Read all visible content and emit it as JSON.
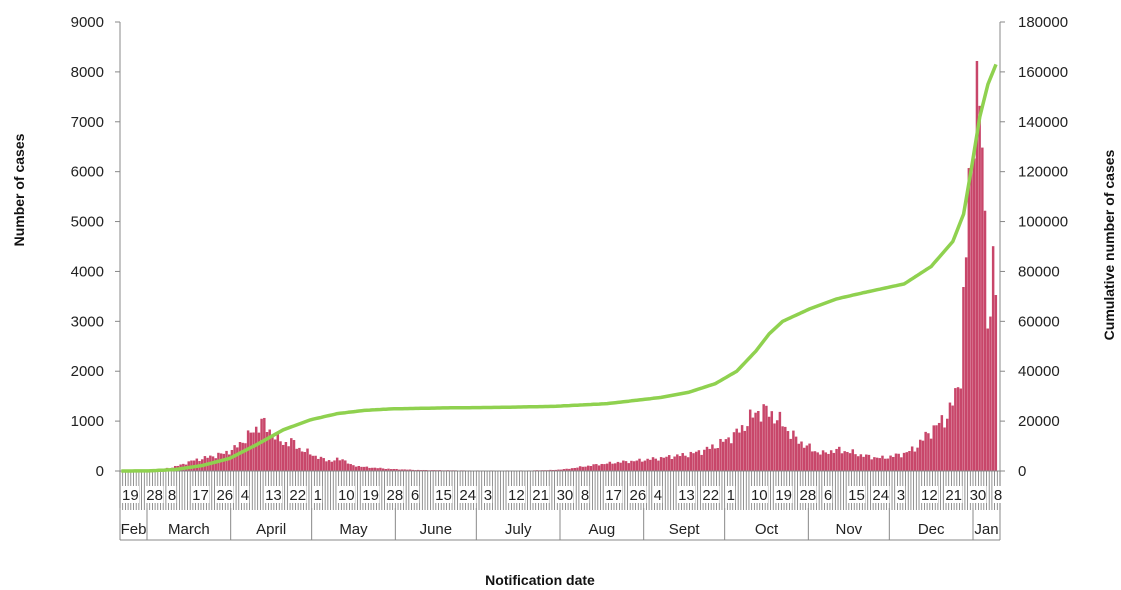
{
  "chart_data": {
    "type": "bar",
    "xlabel": "Notification date",
    "ylabel": "Number of cases",
    "y2label": "Cumulative number of cases",
    "ylim": [
      0,
      9000
    ],
    "y2lim": [
      0,
      180000
    ],
    "yticks": [
      "0",
      "1000",
      "2000",
      "3000",
      "4000",
      "5000",
      "6000",
      "7000",
      "8000",
      "9000"
    ],
    "y2ticks": [
      "0",
      "20000",
      "40000",
      "60000",
      "80000",
      "100000",
      "120000",
      "140000",
      "160000",
      "180000"
    ],
    "grid": false,
    "legend": "none",
    "colors": {
      "bars": "#c8466a",
      "line": "#8fd14f",
      "axis": "#888888"
    },
    "month_labels": [
      {
        "label": "Feb",
        "start_day": 0,
        "end_day": 10
      },
      {
        "label": "March",
        "start_day": 10,
        "end_day": 41
      },
      {
        "label": "April",
        "start_day": 41,
        "end_day": 71
      },
      {
        "label": "May",
        "start_day": 71,
        "end_day": 102
      },
      {
        "label": "June",
        "start_day": 102,
        "end_day": 132
      },
      {
        "label": "July",
        "start_day": 132,
        "end_day": 163
      },
      {
        "label": "Aug",
        "start_day": 163,
        "end_day": 194
      },
      {
        "label": "Sept",
        "start_day": 194,
        "end_day": 224
      },
      {
        "label": "Oct",
        "start_day": 224,
        "end_day": 255
      },
      {
        "label": "Nov",
        "start_day": 255,
        "end_day": 285
      },
      {
        "label": "Dec",
        "start_day": 285,
        "end_day": 316
      },
      {
        "label": "Jan",
        "start_day": 316,
        "end_day": 326
      }
    ],
    "day_labels": [
      {
        "label": "19",
        "day": 0
      },
      {
        "label": "28",
        "day": 9
      },
      {
        "label": "8",
        "day": 17
      },
      {
        "label": "17",
        "day": 26
      },
      {
        "label": "26",
        "day": 35
      },
      {
        "label": "4",
        "day": 44
      },
      {
        "label": "13",
        "day": 53
      },
      {
        "label": "22",
        "day": 62
      },
      {
        "label": "1",
        "day": 71
      },
      {
        "label": "10",
        "day": 80
      },
      {
        "label": "19",
        "day": 89
      },
      {
        "label": "28",
        "day": 98
      },
      {
        "label": "6",
        "day": 107
      },
      {
        "label": "15",
        "day": 116
      },
      {
        "label": "24",
        "day": 125
      },
      {
        "label": "3",
        "day": 134
      },
      {
        "label": "12",
        "day": 143
      },
      {
        "label": "21",
        "day": 152
      },
      {
        "label": "30",
        "day": 161
      },
      {
        "label": "8",
        "day": 170
      },
      {
        "label": "17",
        "day": 179
      },
      {
        "label": "26",
        "day": 188
      },
      {
        "label": "4",
        "day": 197
      },
      {
        "label": "13",
        "day": 206
      },
      {
        "label": "22",
        "day": 215
      },
      {
        "label": "1",
        "day": 224
      },
      {
        "label": "10",
        "day": 233
      },
      {
        "label": "19",
        "day": 242
      },
      {
        "label": "28",
        "day": 251
      },
      {
        "label": "6",
        "day": 260
      },
      {
        "label": "15",
        "day": 269
      },
      {
        "label": "24",
        "day": 278
      },
      {
        "label": "3",
        "day": 287
      },
      {
        "label": "12",
        "day": 296
      },
      {
        "label": "21",
        "day": 305
      },
      {
        "label": "30",
        "day": 314
      },
      {
        "label": "8",
        "day": 323
      }
    ],
    "series": [
      {
        "type": "bar",
        "axis": "left",
        "anchors": [
          [
            0,
            0
          ],
          [
            8,
            5
          ],
          [
            14,
            40
          ],
          [
            18,
            60
          ],
          [
            22,
            120
          ],
          [
            26,
            200
          ],
          [
            30,
            250
          ],
          [
            34,
            300
          ],
          [
            38,
            350
          ],
          [
            42,
            450
          ],
          [
            46,
            650
          ],
          [
            50,
            850
          ],
          [
            52,
            1000
          ],
          [
            54,
            850
          ],
          [
            57,
            700
          ],
          [
            60,
            550
          ],
          [
            63,
            600
          ],
          [
            66,
            450
          ],
          [
            70,
            350
          ],
          [
            74,
            250
          ],
          [
            78,
            200
          ],
          [
            82,
            250
          ],
          [
            85,
            120
          ],
          [
            90,
            80
          ],
          [
            95,
            60
          ],
          [
            100,
            40
          ],
          [
            110,
            20
          ],
          [
            130,
            10
          ],
          [
            150,
            10
          ],
          [
            160,
            20
          ],
          [
            165,
            40
          ],
          [
            170,
            80
          ],
          [
            175,
            120
          ],
          [
            180,
            150
          ],
          [
            185,
            180
          ],
          [
            190,
            200
          ],
          [
            195,
            230
          ],
          [
            200,
            260
          ],
          [
            205,
            300
          ],
          [
            210,
            330
          ],
          [
            215,
            400
          ],
          [
            220,
            500
          ],
          [
            225,
            650
          ],
          [
            230,
            850
          ],
          [
            233,
            1050
          ],
          [
            236,
            1200
          ],
          [
            239,
            1200
          ],
          [
            242,
            1100
          ],
          [
            245,
            950
          ],
          [
            248,
            750
          ],
          [
            251,
            600
          ],
          [
            254,
            500
          ],
          [
            257,
            400
          ],
          [
            260,
            350
          ],
          [
            263,
            400
          ],
          [
            266,
            420
          ],
          [
            270,
            380
          ],
          [
            274,
            320
          ],
          [
            278,
            280
          ],
          [
            282,
            260
          ],
          [
            286,
            300
          ],
          [
            290,
            350
          ],
          [
            294,
            450
          ],
          [
            298,
            700
          ],
          [
            302,
            900
          ],
          [
            306,
            1100
          ],
          [
            309,
            1500
          ],
          [
            311,
            2000
          ],
          [
            312,
            3300
          ],
          [
            313,
            4200
          ],
          [
            314,
            6000
          ],
          [
            315,
            5600
          ],
          [
            316,
            7700
          ],
          [
            317,
            8200
          ],
          [
            318,
            6500
          ],
          [
            319,
            6800
          ],
          [
            320,
            4800
          ],
          [
            321,
            3100
          ],
          [
            322,
            3600
          ],
          [
            323,
            3900
          ],
          [
            324,
            3500
          ]
        ]
      },
      {
        "type": "line",
        "axis": "right",
        "anchors": [
          [
            0,
            0
          ],
          [
            10,
            50
          ],
          [
            20,
            600
          ],
          [
            30,
            2200
          ],
          [
            40,
            5000
          ],
          [
            50,
            10500
          ],
          [
            60,
            16500
          ],
          [
            70,
            20500
          ],
          [
            80,
            23000
          ],
          [
            90,
            24300
          ],
          [
            100,
            24900
          ],
          [
            120,
            25300
          ],
          [
            140,
            25500
          ],
          [
            160,
            25900
          ],
          [
            180,
            27000
          ],
          [
            200,
            29500
          ],
          [
            210,
            31500
          ],
          [
            220,
            35000
          ],
          [
            228,
            40000
          ],
          [
            235,
            48000
          ],
          [
            240,
            55000
          ],
          [
            245,
            60000
          ],
          [
            255,
            65000
          ],
          [
            265,
            69000
          ],
          [
            275,
            71500
          ],
          [
            290,
            75000
          ],
          [
            300,
            82000
          ],
          [
            308,
            92000
          ],
          [
            312,
            103000
          ],
          [
            315,
            122000
          ],
          [
            318,
            142000
          ],
          [
            321,
            155000
          ],
          [
            324,
            163000
          ]
        ]
      }
    ]
  }
}
